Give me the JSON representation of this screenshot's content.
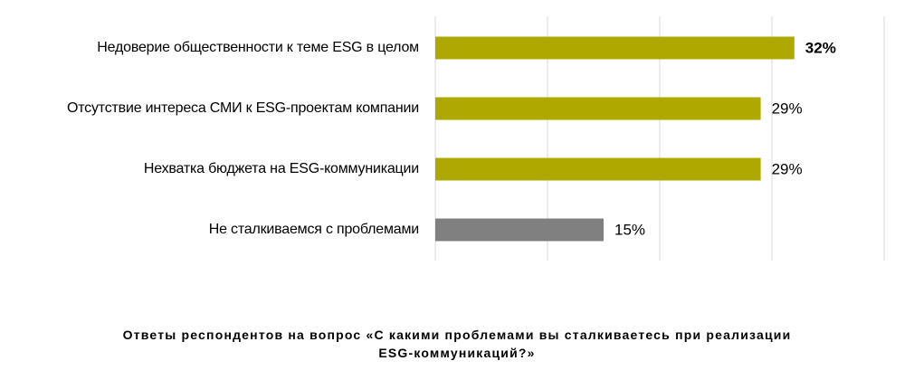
{
  "chart_data": {
    "type": "bar",
    "orientation": "horizontal",
    "title": [
      "Ответы респондентов на вопрос «С какими проблемами вы сталкиваетесь при реализации",
      "ESG-коммуникаций?»"
    ],
    "categories": [
      "Недоверие общественности к теме ESG в целом",
      "Отсутствие интереса СМИ к ESG-проектам компании",
      "Нехватка бюджета на ESG-коммуникации",
      "Не сталкиваемся с проблемами"
    ],
    "values": [
      32,
      29,
      29,
      15
    ],
    "value_labels": [
      "32%",
      "29%",
      "29%",
      "15%"
    ],
    "colors": [
      "#afa800",
      "#afa800",
      "#afa800",
      "#808080"
    ],
    "bold_labels": [
      true,
      false,
      false,
      false
    ],
    "xlim": [
      0,
      40
    ],
    "xticks": [
      0,
      10,
      20,
      30,
      40
    ],
    "grid": true
  }
}
